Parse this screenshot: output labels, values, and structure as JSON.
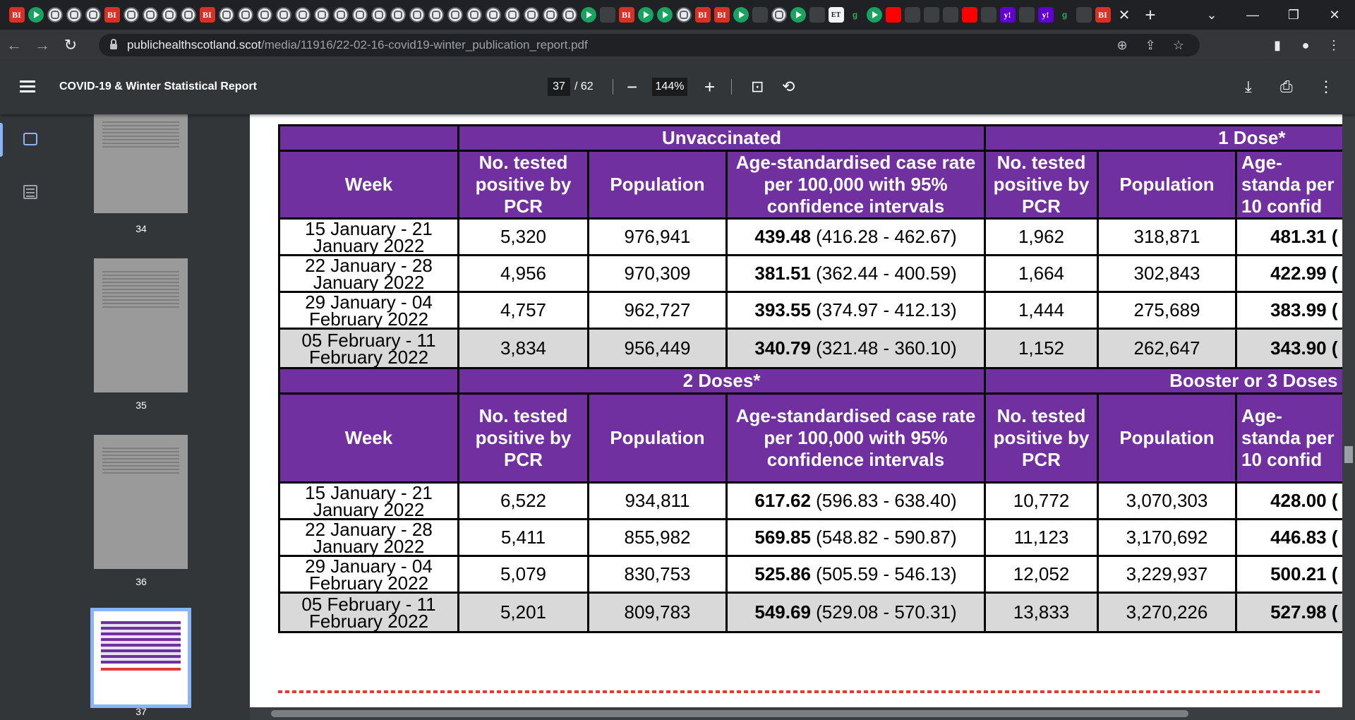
{
  "browser": {
    "tabs": [
      "BI",
      "play",
      "globe",
      "globe",
      "globe",
      "BI",
      "globe",
      "globe",
      "globe",
      "globe",
      "BI",
      "globe",
      "globe",
      "globe",
      "globe",
      "globe",
      "globe",
      "globe",
      "globe",
      "globe",
      "globe",
      "globe",
      "globe",
      "globe",
      "globe",
      "globe",
      "globe",
      "globe",
      "globe",
      "globe",
      "play",
      "dark",
      "BI",
      "play",
      "play",
      "globe",
      "BI",
      "BI",
      "play",
      "dark",
      "globe",
      "play",
      "dark",
      "ET",
      "g",
      "play",
      "yt",
      "dark",
      "dark",
      "dark",
      "yt",
      "dark",
      "yahoo",
      "dark",
      "yahoo",
      "g",
      "dark"
    ],
    "active_tab_icon": "BI",
    "url_domain": "publichealthscotland.scot",
    "url_path": "/media/11916/22-02-16-covid19-winter_publication_report.pdf"
  },
  "pdf": {
    "title": "COVID-19 & Winter Statistical Report",
    "page_current": "37",
    "page_total": "/ 62",
    "zoom": "144%",
    "thumbnails": [
      "34",
      "35",
      "36",
      "37"
    ],
    "selected_thumbnail": "37"
  },
  "table": {
    "group_headers_top": [
      "Unvaccinated",
      "1 Dose*"
    ],
    "group_headers_bottom": [
      "2 Doses*",
      "Booster or 3 Doses"
    ],
    "col_headers": {
      "week": "Week",
      "tested": "No. tested positive by PCR",
      "population": "Population",
      "rate": "Age-standardised case rate per 100,000 with 95% confidence intervals",
      "tested_b": "No. tested positive by PCR",
      "population_b": "Population",
      "rate_b_cut": "Age-standa per 10 confid"
    },
    "top_rows": [
      {
        "week": "15 January - 21 January 2022",
        "tested": "5,320",
        "pop": "976,941",
        "rate": "439.48",
        "ci": "(416.28 - 462.67)",
        "tested_b": "1,962",
        "pop_b": "318,871",
        "rate_b": "481.31 ("
      },
      {
        "week": "22 January - 28 January 2022",
        "tested": "4,956",
        "pop": "970,309",
        "rate": "381.51",
        "ci": "(362.44 - 400.59)",
        "tested_b": "1,664",
        "pop_b": "302,843",
        "rate_b": "422.99 ("
      },
      {
        "week": "29 January - 04 February 2022",
        "tested": "4,757",
        "pop": "962,727",
        "rate": "393.55",
        "ci": "(374.97 - 412.13)",
        "tested_b": "1,444",
        "pop_b": "275,689",
        "rate_b": "383.99 ("
      },
      {
        "week": "05 February - 11 February 2022",
        "tested": "3,834",
        "pop": "956,449",
        "rate": "340.79",
        "ci": "(321.48 - 360.10)",
        "tested_b": "1,152",
        "pop_b": "262,647",
        "rate_b": "343.90 ("
      }
    ],
    "bottom_rows": [
      {
        "week": "15 January - 21 January 2022",
        "tested": "6,522",
        "pop": "934,811",
        "rate": "617.62",
        "ci": "(596.83 - 638.40)",
        "tested_b": "10,772",
        "pop_b": "3,070,303",
        "rate_b": "428.00 ("
      },
      {
        "week": "22 January - 28 January 2022",
        "tested": "5,411",
        "pop": "855,982",
        "rate": "569.85",
        "ci": "(548.82 - 590.87)",
        "tested_b": "11,123",
        "pop_b": "3,170,692",
        "rate_b": "446.83 ("
      },
      {
        "week": "29 January - 04 February 2022",
        "tested": "5,079",
        "pop": "830,753",
        "rate": "525.86",
        "ci": "(505.59 - 546.13)",
        "tested_b": "12,052",
        "pop_b": "3,229,937",
        "rate_b": "500.21 ("
      },
      {
        "week": "05 February - 11 February 2022",
        "tested": "5,201",
        "pop": "809,783",
        "rate": "549.69",
        "ci": "(529.08 - 570.31)",
        "tested_b": "13,833",
        "pop_b": "3,270,226",
        "rate_b": "527.98 ("
      }
    ]
  }
}
